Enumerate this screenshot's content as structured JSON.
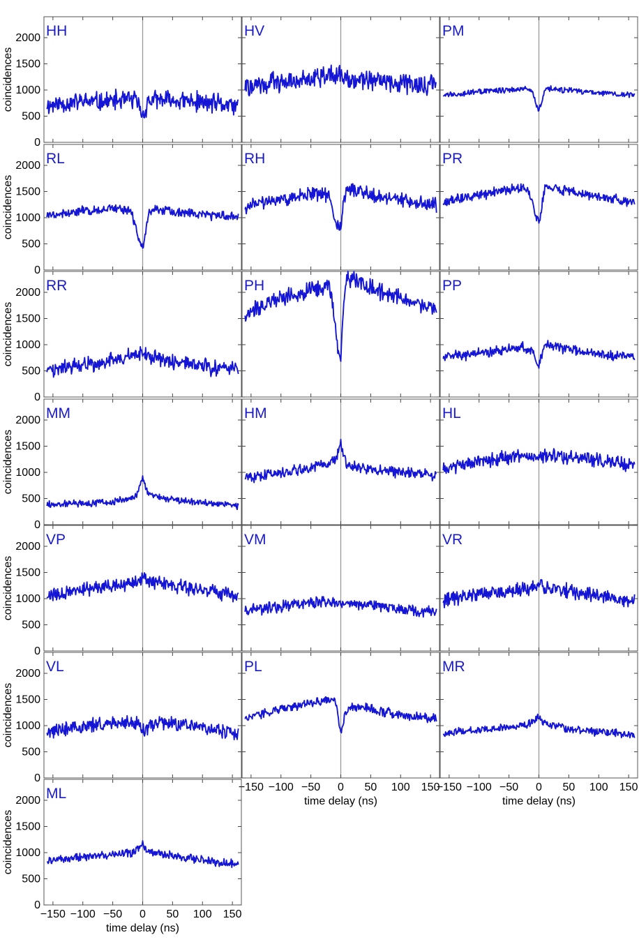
{
  "figure": {
    "xlabel": "time delay (ns)",
    "ylabel": "coincidences",
    "xticks": [
      -150,
      -100,
      -50,
      0,
      50,
      100,
      150
    ],
    "yticks": [
      0,
      500,
      1000,
      1500,
      2000
    ],
    "xlim": [
      -165,
      165
    ],
    "ylim": [
      0,
      2400
    ],
    "line_color": "#1515d6",
    "label_color": "#1a1ac8"
  },
  "chart_data": [
    {
      "type": "line",
      "label": "HH",
      "xlabel": "time delay (ns)",
      "ylabel": "coincidences",
      "xlim": [
        -165,
        165
      ],
      "ylim": [
        0,
        2400
      ],
      "x": [
        -160,
        -140,
        -120,
        -100,
        -80,
        -60,
        -40,
        -20,
        -10,
        -5,
        0,
        5,
        10,
        20,
        40,
        60,
        80,
        100,
        120,
        140,
        160
      ],
      "baseline": [
        700,
        740,
        760,
        780,
        770,
        780,
        800,
        820,
        790,
        650,
        500,
        640,
        790,
        800,
        800,
        790,
        780,
        760,
        740,
        710,
        690
      ],
      "noise": 230,
      "seed": 11
    },
    {
      "type": "line",
      "label": "HV",
      "xlabel": "time delay (ns)",
      "ylabel": "coincidences",
      "xlim": [
        -165,
        165
      ],
      "ylim": [
        0,
        2400
      ],
      "x": [
        -160,
        -140,
        -120,
        -100,
        -80,
        -60,
        -40,
        -20,
        -10,
        -5,
        0,
        5,
        10,
        20,
        40,
        60,
        80,
        100,
        120,
        140,
        160
      ],
      "baseline": [
        1060,
        1100,
        1130,
        1160,
        1190,
        1220,
        1250,
        1270,
        1280,
        1280,
        1270,
        1270,
        1260,
        1240,
        1210,
        1180,
        1150,
        1120,
        1100,
        1080,
        1070
      ],
      "noise": 230,
      "seed": 22
    },
    {
      "type": "line",
      "label": "PM",
      "xlabel": "time delay (ns)",
      "ylabel": "coincidences",
      "xlim": [
        -165,
        165
      ],
      "ylim": [
        0,
        2400
      ],
      "x": [
        -160,
        -140,
        -120,
        -100,
        -80,
        -60,
        -40,
        -20,
        -10,
        -5,
        0,
        5,
        10,
        20,
        40,
        60,
        80,
        100,
        120,
        140,
        160
      ],
      "baseline": [
        900,
        920,
        950,
        970,
        990,
        1000,
        1020,
        1050,
        960,
        720,
        600,
        760,
        1000,
        1020,
        1000,
        980,
        960,
        940,
        930,
        910,
        900
      ],
      "noise": 70,
      "seed": 33
    },
    {
      "type": "line",
      "label": "RL",
      "xlabel": "time delay (ns)",
      "ylabel": "coincidences",
      "xlim": [
        -165,
        165
      ],
      "ylim": [
        0,
        2400
      ],
      "x": [
        -160,
        -140,
        -120,
        -100,
        -80,
        -60,
        -40,
        -20,
        -10,
        -5,
        0,
        5,
        10,
        20,
        40,
        60,
        80,
        100,
        120,
        140,
        160
      ],
      "baseline": [
        1040,
        1070,
        1100,
        1120,
        1140,
        1170,
        1180,
        1150,
        750,
        500,
        420,
        720,
        1100,
        1140,
        1120,
        1100,
        1080,
        1060,
        1040,
        1020,
        1000
      ],
      "noise": 110,
      "seed": 44
    },
    {
      "type": "line",
      "label": "RH",
      "xlabel": "time delay (ns)",
      "ylabel": "coincidences",
      "xlim": [
        -165,
        165
      ],
      "ylim": [
        0,
        2400
      ],
      "x": [
        -160,
        -140,
        -120,
        -100,
        -80,
        -60,
        -40,
        -20,
        -10,
        -5,
        0,
        5,
        10,
        20,
        40,
        60,
        80,
        100,
        120,
        140,
        160
      ],
      "baseline": [
        1200,
        1260,
        1320,
        1360,
        1390,
        1420,
        1450,
        1450,
        1000,
        880,
        800,
        1300,
        1600,
        1560,
        1480,
        1420,
        1380,
        1340,
        1300,
        1270,
        1250
      ],
      "noise": 170,
      "seed": 55
    },
    {
      "type": "line",
      "label": "PR",
      "xlabel": "time delay (ns)",
      "ylabel": "coincidences",
      "xlim": [
        -165,
        165
      ],
      "ylim": [
        0,
        2400
      ],
      "x": [
        -160,
        -140,
        -120,
        -100,
        -80,
        -60,
        -40,
        -20,
        -10,
        -5,
        0,
        5,
        10,
        20,
        40,
        60,
        80,
        100,
        120,
        140,
        160
      ],
      "baseline": [
        1300,
        1340,
        1400,
        1440,
        1480,
        1520,
        1560,
        1590,
        1300,
        1000,
        920,
        1200,
        1560,
        1580,
        1520,
        1480,
        1440,
        1400,
        1360,
        1320,
        1300
      ],
      "noise": 120,
      "seed": 66
    },
    {
      "type": "line",
      "label": "RR",
      "xlabel": "time delay (ns)",
      "ylabel": "coincidences",
      "xlim": [
        -165,
        165
      ],
      "ylim": [
        0,
        2400
      ],
      "x": [
        -160,
        -140,
        -120,
        -100,
        -80,
        -60,
        -40,
        -20,
        -10,
        -5,
        0,
        5,
        10,
        20,
        40,
        60,
        80,
        100,
        120,
        140,
        160
      ],
      "baseline": [
        520,
        540,
        570,
        600,
        640,
        680,
        720,
        770,
        800,
        820,
        820,
        800,
        780,
        740,
        700,
        660,
        620,
        590,
        560,
        540,
        520
      ],
      "noise": 180,
      "seed": 77
    },
    {
      "type": "line",
      "label": "PH",
      "xlabel": "time delay (ns)",
      "ylabel": "coincidences",
      "xlim": [
        -165,
        165
      ],
      "ylim": [
        0,
        2400
      ],
      "x": [
        -160,
        -140,
        -120,
        -100,
        -80,
        -60,
        -40,
        -20,
        -10,
        -5,
        0,
        5,
        10,
        20,
        40,
        60,
        80,
        100,
        120,
        140,
        160
      ],
      "baseline": [
        1600,
        1700,
        1800,
        1880,
        1950,
        2000,
        2050,
        2100,
        1500,
        900,
        720,
        1800,
        2300,
        2250,
        2150,
        2050,
        1950,
        1880,
        1800,
        1750,
        1700
      ],
      "noise": 190,
      "seed": 88
    },
    {
      "type": "line",
      "label": "PP",
      "xlabel": "time delay (ns)",
      "ylabel": "coincidences",
      "xlim": [
        -165,
        165
      ],
      "ylim": [
        0,
        2400
      ],
      "x": [
        -160,
        -140,
        -120,
        -100,
        -80,
        -60,
        -40,
        -20,
        -10,
        -5,
        0,
        5,
        10,
        20,
        40,
        60,
        80,
        100,
        120,
        140,
        160
      ],
      "baseline": [
        760,
        780,
        810,
        840,
        870,
        900,
        930,
        950,
        900,
        700,
        620,
        820,
        1000,
        980,
        940,
        900,
        860,
        830,
        800,
        780,
        760
      ],
      "noise": 120,
      "seed": 99
    },
    {
      "type": "line",
      "label": "MM",
      "xlabel": "time delay (ns)",
      "ylabel": "coincidences",
      "xlim": [
        -165,
        165
      ],
      "ylim": [
        0,
        2400
      ],
      "x": [
        -160,
        -140,
        -120,
        -100,
        -80,
        -60,
        -40,
        -20,
        -10,
        -5,
        0,
        5,
        10,
        20,
        40,
        60,
        80,
        100,
        120,
        140,
        160
      ],
      "baseline": [
        380,
        390,
        400,
        410,
        420,
        440,
        460,
        500,
        560,
        700,
        900,
        700,
        600,
        540,
        500,
        470,
        440,
        420,
        400,
        380,
        360
      ],
      "noise": 80,
      "seed": 111
    },
    {
      "type": "line",
      "label": "HM",
      "xlabel": "time delay (ns)",
      "ylabel": "coincidences",
      "xlim": [
        -165,
        165
      ],
      "ylim": [
        0,
        2400
      ],
      "x": [
        -160,
        -140,
        -120,
        -100,
        -80,
        -60,
        -40,
        -20,
        -10,
        -5,
        0,
        5,
        10,
        20,
        40,
        60,
        80,
        100,
        120,
        140,
        160
      ],
      "baseline": [
        900,
        930,
        960,
        990,
        1020,
        1060,
        1100,
        1180,
        1250,
        1350,
        1600,
        1300,
        1180,
        1120,
        1080,
        1050,
        1020,
        1000,
        980,
        960,
        940
      ],
      "noise": 130,
      "seed": 122
    },
    {
      "type": "line",
      "label": "HL",
      "xlabel": "time delay (ns)",
      "ylabel": "coincidences",
      "xlim": [
        -165,
        165
      ],
      "ylim": [
        0,
        2400
      ],
      "x": [
        -160,
        -140,
        -120,
        -100,
        -80,
        -60,
        -40,
        -20,
        -10,
        -5,
        0,
        5,
        10,
        20,
        40,
        60,
        80,
        100,
        120,
        140,
        160
      ],
      "baseline": [
        1080,
        1120,
        1160,
        1200,
        1230,
        1260,
        1290,
        1310,
        1320,
        1320,
        1320,
        1320,
        1320,
        1320,
        1300,
        1280,
        1260,
        1230,
        1200,
        1160,
        1120
      ],
      "noise": 170,
      "seed": 133
    },
    {
      "type": "line",
      "label": "VP",
      "xlabel": "time delay (ns)",
      "ylabel": "coincidences",
      "xlim": [
        -165,
        165
      ],
      "ylim": [
        0,
        2400
      ],
      "x": [
        -160,
        -140,
        -120,
        -100,
        -80,
        -60,
        -40,
        -20,
        -10,
        -5,
        0,
        5,
        10,
        20,
        40,
        60,
        80,
        100,
        120,
        140,
        160
      ],
      "baseline": [
        1050,
        1090,
        1130,
        1170,
        1200,
        1230,
        1260,
        1300,
        1320,
        1340,
        1400,
        1380,
        1350,
        1320,
        1280,
        1240,
        1200,
        1160,
        1120,
        1090,
        1060
      ],
      "noise": 160,
      "seed": 144
    },
    {
      "type": "line",
      "label": "VM",
      "xlabel": "time delay (ns)",
      "ylabel": "coincidences",
      "xlim": [
        -165,
        165
      ],
      "ylim": [
        0,
        2400
      ],
      "x": [
        -160,
        -140,
        -120,
        -100,
        -80,
        -60,
        -40,
        -20,
        -10,
        -5,
        0,
        5,
        10,
        20,
        40,
        60,
        80,
        100,
        120,
        140,
        160
      ],
      "baseline": [
        780,
        800,
        830,
        860,
        890,
        910,
        930,
        940,
        930,
        900,
        880,
        900,
        920,
        920,
        900,
        870,
        840,
        810,
        780,
        760,
        740
      ],
      "noise": 130,
      "seed": 155
    },
    {
      "type": "line",
      "label": "VR",
      "xlabel": "time delay (ns)",
      "ylabel": "coincidences",
      "xlim": [
        -165,
        165
      ],
      "ylim": [
        0,
        2400
      ],
      "x": [
        -160,
        -140,
        -120,
        -100,
        -80,
        -60,
        -40,
        -20,
        -10,
        -5,
        0,
        5,
        10,
        20,
        40,
        60,
        80,
        100,
        120,
        140,
        160
      ],
      "baseline": [
        960,
        1000,
        1040,
        1080,
        1110,
        1140,
        1170,
        1200,
        1210,
        1220,
        1250,
        1240,
        1220,
        1200,
        1160,
        1120,
        1080,
        1050,
        1020,
        990,
        960
      ],
      "noise": 170,
      "seed": 166
    },
    {
      "type": "line",
      "label": "VL",
      "xlabel": "time delay (ns)",
      "ylabel": "coincidences",
      "xlim": [
        -165,
        165
      ],
      "ylim": [
        0,
        2400
      ],
      "x": [
        -160,
        -140,
        -120,
        -100,
        -80,
        -60,
        -40,
        -20,
        -10,
        -5,
        0,
        5,
        10,
        20,
        40,
        60,
        80,
        100,
        120,
        140,
        160
      ],
      "baseline": [
        900,
        930,
        960,
        990,
        1010,
        1030,
        1050,
        1060,
        1040,
        960,
        900,
        950,
        1010,
        1040,
        1040,
        1020,
        990,
        960,
        930,
        900,
        880
      ],
      "noise": 170,
      "seed": 177
    },
    {
      "type": "line",
      "label": "PL",
      "xlabel": "time delay (ns)",
      "ylabel": "coincidences",
      "xlim": [
        -165,
        165
      ],
      "ylim": [
        0,
        2400
      ],
      "x": [
        -160,
        -140,
        -120,
        -100,
        -80,
        -60,
        -40,
        -20,
        -10,
        -5,
        0,
        5,
        10,
        20,
        40,
        60,
        80,
        100,
        120,
        140,
        160
      ],
      "baseline": [
        1150,
        1200,
        1260,
        1320,
        1370,
        1420,
        1460,
        1500,
        1480,
        1200,
        900,
        1100,
        1300,
        1380,
        1340,
        1290,
        1250,
        1220,
        1190,
        1160,
        1140
      ],
      "noise": 110,
      "seed": 188
    },
    {
      "type": "line",
      "label": "MR",
      "xlabel": "time delay (ns)",
      "ylabel": "coincidences",
      "xlim": [
        -165,
        165
      ],
      "ylim": [
        0,
        2400
      ],
      "x": [
        -160,
        -140,
        -120,
        -100,
        -80,
        -60,
        -40,
        -20,
        -10,
        -5,
        0,
        5,
        10,
        20,
        40,
        60,
        80,
        100,
        120,
        140,
        160
      ],
      "baseline": [
        860,
        880,
        900,
        920,
        940,
        960,
        990,
        1030,
        1080,
        1120,
        1180,
        1100,
        1040,
        1000,
        960,
        930,
        900,
        880,
        860,
        840,
        820
      ],
      "noise": 90,
      "seed": 199
    },
    {
      "type": "line",
      "label": "ML",
      "xlabel": "time delay (ns)",
      "ylabel": "coincidences",
      "xlim": [
        -165,
        165
      ],
      "ylim": [
        0,
        2400
      ],
      "x": [
        -160,
        -140,
        -120,
        -100,
        -80,
        -60,
        -40,
        -20,
        -10,
        -5,
        0,
        5,
        10,
        20,
        40,
        60,
        80,
        100,
        120,
        140,
        160
      ],
      "baseline": [
        850,
        870,
        890,
        910,
        930,
        950,
        970,
        1000,
        1040,
        1100,
        1180,
        1080,
        1030,
        990,
        950,
        920,
        890,
        860,
        830,
        800,
        780
      ],
      "noise": 100,
      "seed": 211
    }
  ]
}
